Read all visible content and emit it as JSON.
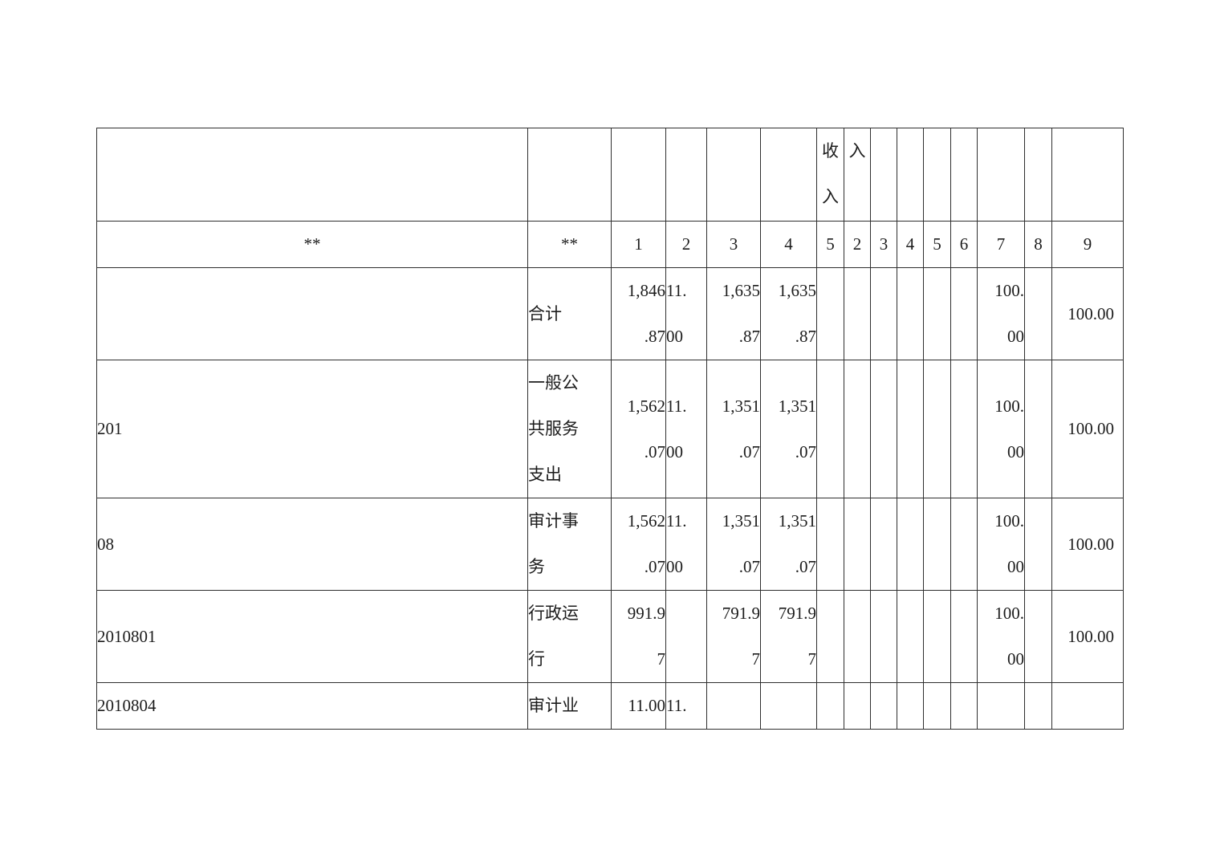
{
  "colors": {
    "background": "#ffffff",
    "border": "#2f2f2f",
    "text": "#1c1c1c"
  },
  "table": {
    "header_top": {
      "cells": [
        "",
        "",
        "",
        "",
        "",
        "",
        "收\n入",
        "入",
        "",
        "",
        "",
        "",
        "",
        "",
        ""
      ]
    },
    "header": {
      "cells": [
        "**",
        "**",
        "1",
        "2",
        "3",
        "4",
        "5",
        "2",
        "3",
        "4",
        "5",
        "6",
        "7",
        "8",
        "9"
      ]
    },
    "rows": [
      {
        "indent": 0,
        "cells": [
          "",
          "合计",
          "1,846\n.87",
          "11.\n00",
          "1,635\n.87",
          "1,635\n.87",
          "",
          "",
          "",
          "",
          "",
          "",
          "100.\n00",
          "",
          "100.00"
        ]
      },
      {
        "indent": 0,
        "cells": [
          "201",
          "一般公\n共服务\n支出",
          "1,562\n.07",
          "11.\n00",
          "1,351\n.07",
          "1,351\n.07",
          "",
          "",
          "",
          "",
          "",
          "",
          "100.\n00",
          "",
          "100.00"
        ]
      },
      {
        "indent": 1,
        "cells": [
          "08",
          "审计事\n务",
          "1,562\n.07",
          "11.\n00",
          "1,351\n.07",
          "1,351\n.07",
          "",
          "",
          "",
          "",
          "",
          "",
          "100.\n00",
          "",
          "100.00"
        ]
      },
      {
        "indent": 2,
        "cells": [
          "2010801",
          "行政运\n行",
          "991.9\n7",
          "",
          "791.9\n7",
          "791.9\n7",
          "",
          "",
          "",
          "",
          "",
          "",
          "100.\n00",
          "",
          "100.00"
        ]
      },
      {
        "indent": 2,
        "cells": [
          "2010804",
          "审计业",
          "11.00",
          "11.",
          "",
          "",
          "",
          "",
          "",
          "",
          "",
          "",
          "",
          "",
          ""
        ]
      }
    ]
  }
}
